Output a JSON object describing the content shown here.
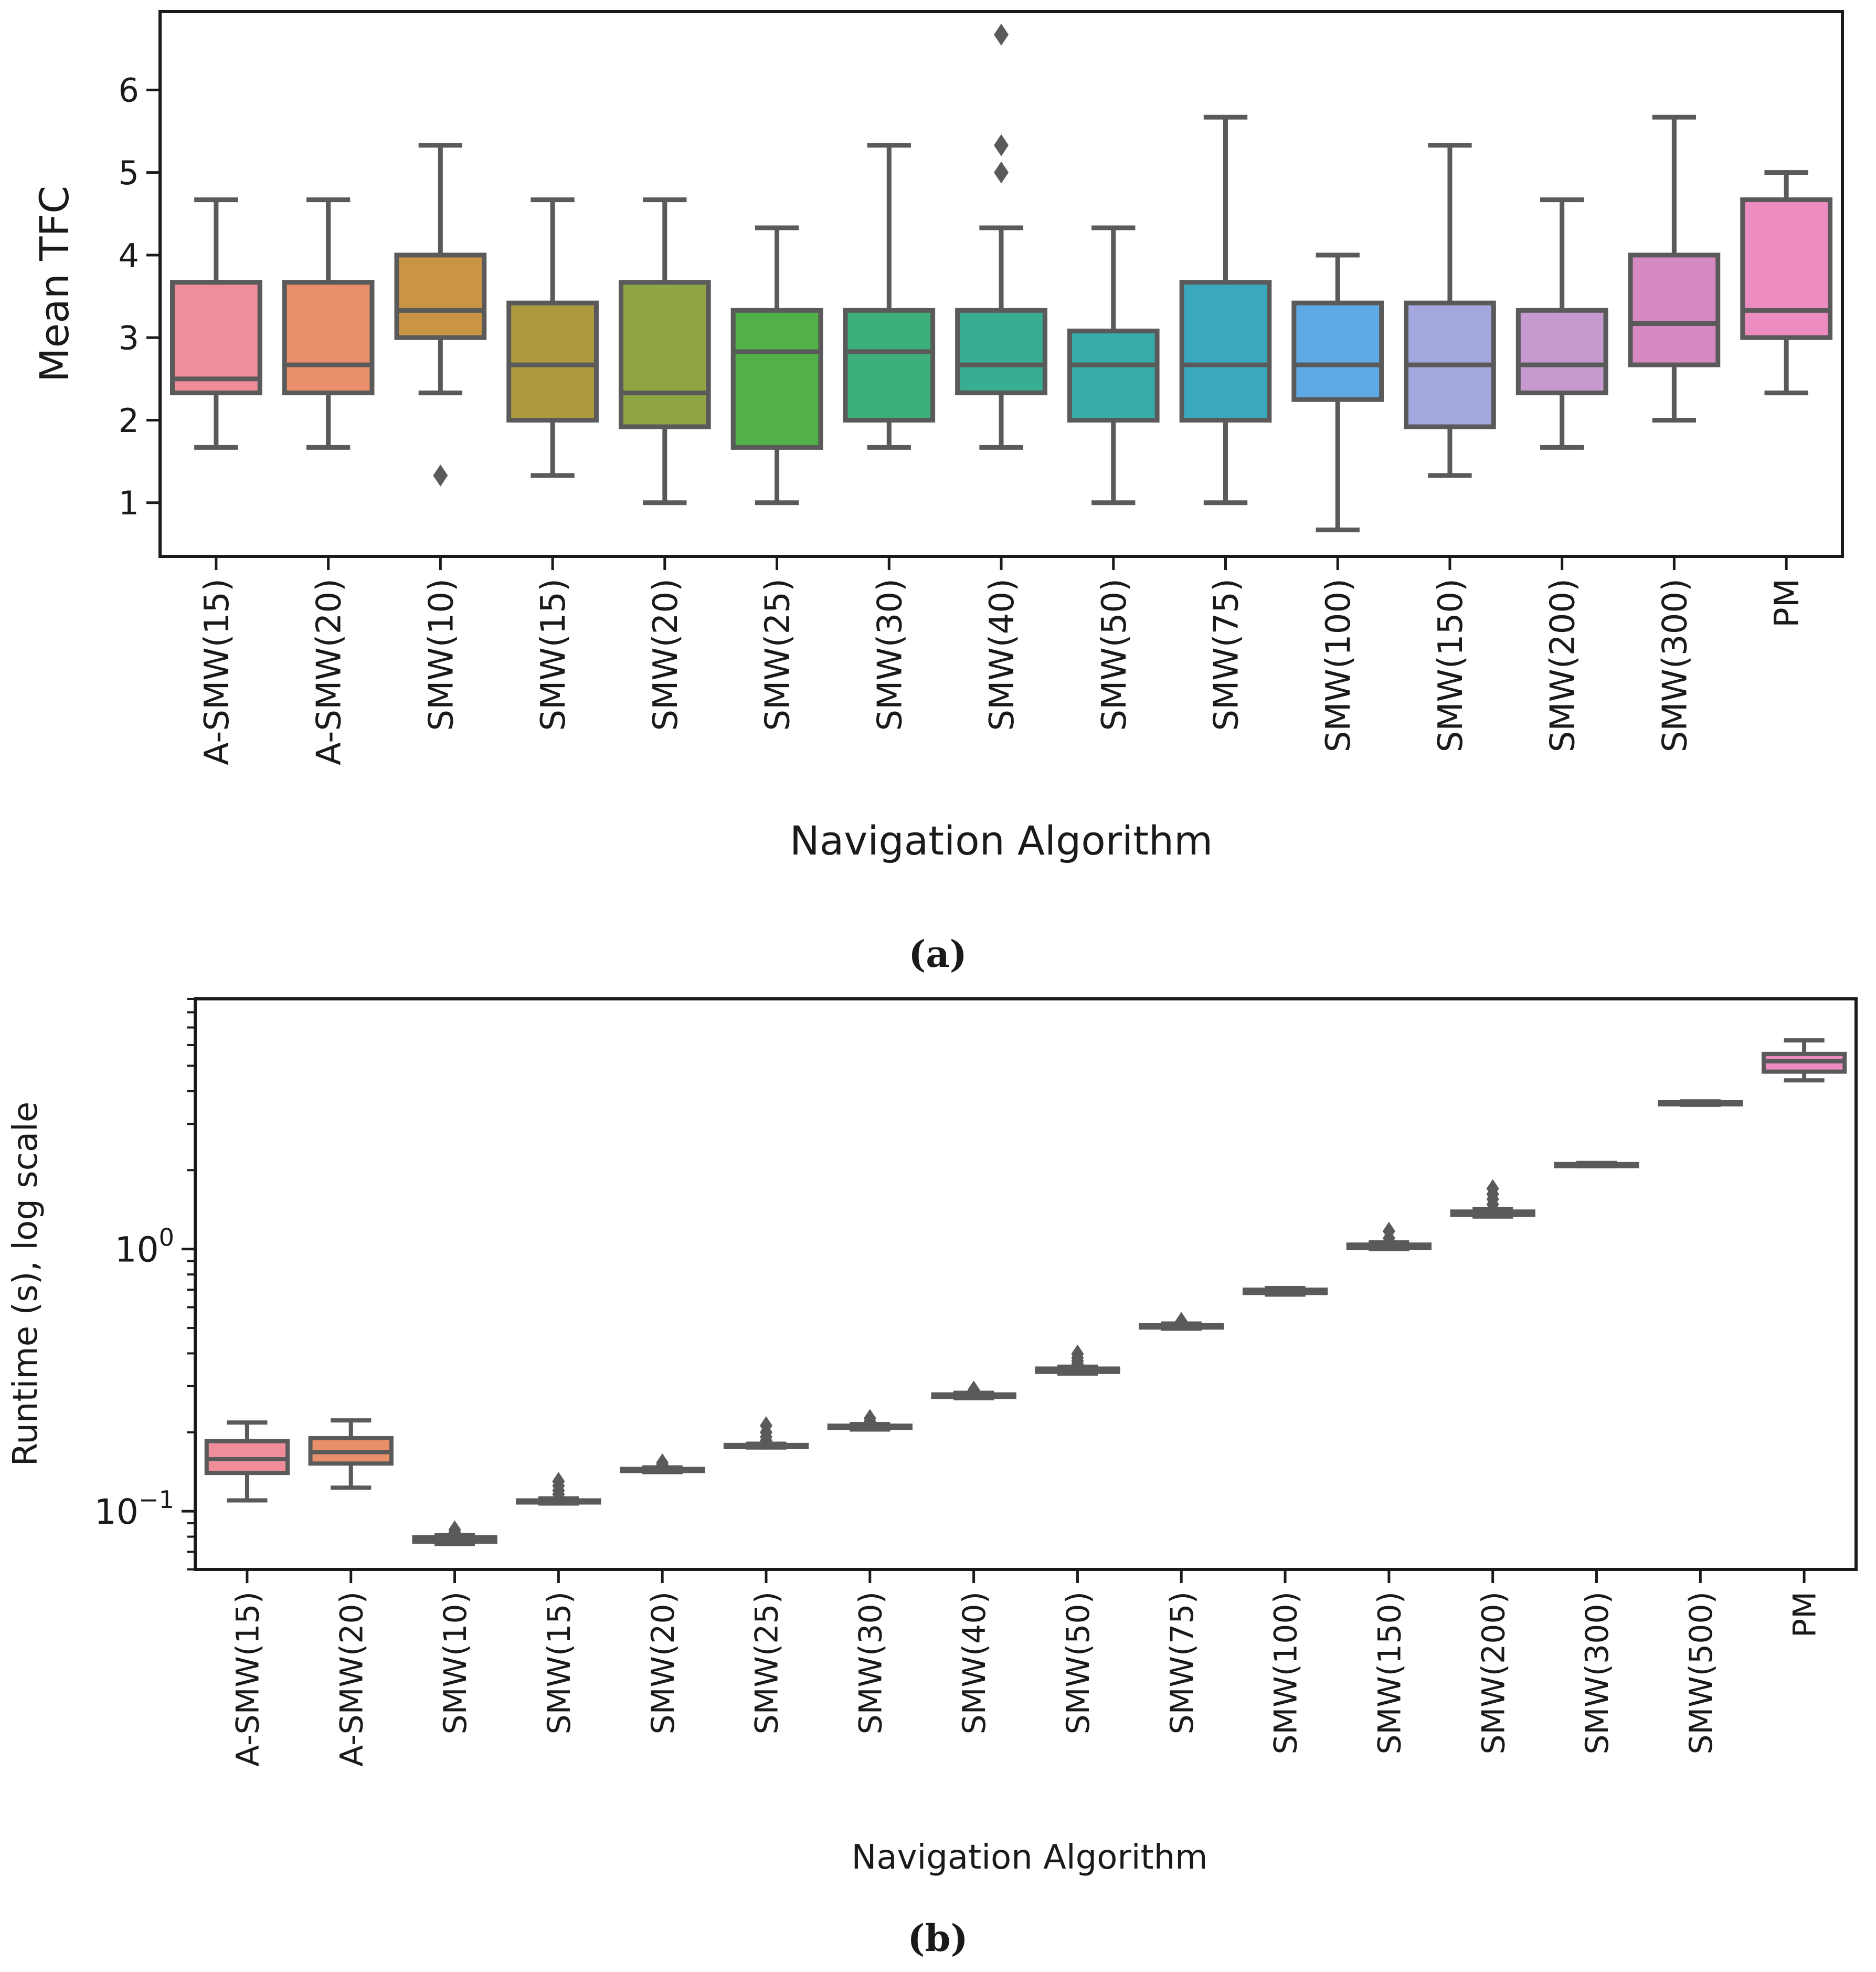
{
  "captions": {
    "a": "(a)",
    "b": "(b)"
  },
  "chart_data": [
    {
      "type": "box",
      "id": "a",
      "xlabel": "Navigation Algorithm",
      "ylabel": "Mean TFC",
      "ylim": [
        0.35,
        6.95
      ],
      "yticks": [
        1,
        2,
        3,
        4,
        5,
        6
      ],
      "ytick_labels": [
        "1",
        "2",
        "3",
        "4",
        "5",
        "6"
      ],
      "grid": false,
      "categories": [
        "A-SMW(15)",
        "A-SMW(20)",
        "SMW(10)",
        "SMW(15)",
        "SMW(20)",
        "SMW(25)",
        "SMW(30)",
        "SMW(40)",
        "SMW(50)",
        "SMW(75)",
        "SMW(100)",
        "SMW(150)",
        "SMW(200)",
        "SMW(300)",
        "PM"
      ],
      "colors": [
        "#F08D9A",
        "#E9906A",
        "#C99444",
        "#AD9A3F",
        "#8FA543",
        "#52B048",
        "#3DAF7A",
        "#38AD91",
        "#36ADA6",
        "#3AA9C0",
        "#5EAAE6",
        "#A3A7DE",
        "#C69ACE",
        "#D789C1",
        "#EC8CC0"
      ],
      "boxes": [
        {
          "whislo": 1.67,
          "q1": 2.33,
          "med": 2.5,
          "q3": 3.67,
          "whishi": 4.67,
          "fliers": []
        },
        {
          "whislo": 1.67,
          "q1": 2.33,
          "med": 2.67,
          "q3": 3.67,
          "whishi": 4.67,
          "fliers": []
        },
        {
          "whislo": 2.33,
          "q1": 3.0,
          "med": 3.33,
          "q3": 4.0,
          "whishi": 5.33,
          "fliers": [
            1.33
          ]
        },
        {
          "whislo": 1.33,
          "q1": 2.0,
          "med": 2.67,
          "q3": 3.42,
          "whishi": 4.67,
          "fliers": []
        },
        {
          "whislo": 1.0,
          "q1": 1.92,
          "med": 2.33,
          "q3": 3.67,
          "whishi": 4.67,
          "fliers": []
        },
        {
          "whislo": 1.0,
          "q1": 1.67,
          "med": 2.83,
          "q3": 3.33,
          "whishi": 4.33,
          "fliers": []
        },
        {
          "whislo": 1.67,
          "q1": 2.0,
          "med": 2.83,
          "q3": 3.33,
          "whishi": 5.33,
          "fliers": []
        },
        {
          "whislo": 1.67,
          "q1": 2.33,
          "med": 2.67,
          "q3": 3.33,
          "whishi": 4.33,
          "fliers": [
            5.0,
            5.33,
            6.67
          ]
        },
        {
          "whislo": 1.0,
          "q1": 2.0,
          "med": 2.67,
          "q3": 3.08,
          "whishi": 4.33,
          "fliers": []
        },
        {
          "whislo": 1.0,
          "q1": 2.0,
          "med": 2.67,
          "q3": 3.67,
          "whishi": 5.67,
          "fliers": []
        },
        {
          "whislo": 0.67,
          "q1": 2.25,
          "med": 2.67,
          "q3": 3.42,
          "whishi": 4.0,
          "fliers": []
        },
        {
          "whislo": 1.33,
          "q1": 1.92,
          "med": 2.67,
          "q3": 3.42,
          "whishi": 5.33,
          "fliers": []
        },
        {
          "whislo": 1.67,
          "q1": 2.33,
          "med": 2.67,
          "q3": 3.33,
          "whishi": 4.67,
          "fliers": []
        },
        {
          "whislo": 2.0,
          "q1": 2.67,
          "med": 3.17,
          "q3": 4.0,
          "whishi": 5.67,
          "fliers": []
        },
        {
          "whislo": 2.33,
          "q1": 3.0,
          "med": 3.33,
          "q3": 4.67,
          "whishi": 5.0,
          "fliers": []
        }
      ]
    },
    {
      "type": "box",
      "id": "b",
      "xlabel": "Navigation Algorithm",
      "ylabel": "Runtime (s), log scale",
      "yscale": "log",
      "ylim": [
        0.06,
        9.0
      ],
      "ytick_labels": [
        {
          "value": 0.1,
          "base": "10",
          "exp": "−1"
        },
        {
          "value": 1,
          "base": "10",
          "exp": "0"
        }
      ],
      "grid": false,
      "categories": [
        "A-SMW(15)",
        "A-SMW(20)",
        "SMW(10)",
        "SMW(15)",
        "SMW(20)",
        "SMW(25)",
        "SMW(30)",
        "SMW(40)",
        "SMW(50)",
        "SMW(75)",
        "SMW(100)",
        "SMW(150)",
        "SMW(200)",
        "SMW(300)",
        "SMW(500)",
        "PM"
      ],
      "colors": [
        "#F08D9A",
        "#E9906A",
        "#C99444",
        "#AD9A3F",
        "#8FA543",
        "#52B048",
        "#3DAF7A",
        "#38AD91",
        "#36ADA6",
        "#3AA9C0",
        "#5EAAE6",
        "#A3A7DE",
        "#C69ACE",
        "#D789C1",
        "#E28BC4",
        "#EC8CC0"
      ],
      "boxes": [
        {
          "whislo": 0.11,
          "q1": 0.14,
          "med": 0.158,
          "q3": 0.185,
          "whishi": 0.218,
          "fliers": []
        },
        {
          "whislo": 0.123,
          "q1": 0.152,
          "med": 0.168,
          "q3": 0.19,
          "whishi": 0.222,
          "fliers": []
        },
        {
          "whislo": 0.075,
          "q1": 0.0765,
          "med": 0.078,
          "q3": 0.0795,
          "whishi": 0.081,
          "fliers": [
            0.083,
            0.085
          ]
        },
        {
          "whislo": 0.107,
          "q1": 0.108,
          "med": 0.109,
          "q3": 0.11,
          "whishi": 0.112,
          "fliers": [
            0.116,
            0.12,
            0.125,
            0.13
          ]
        },
        {
          "whislo": 0.141,
          "q1": 0.143,
          "med": 0.144,
          "q3": 0.145,
          "whishi": 0.147,
          "fliers": [
            0.15,
            0.153
          ]
        },
        {
          "whislo": 0.175,
          "q1": 0.176,
          "med": 0.178,
          "q3": 0.179,
          "whishi": 0.181,
          "fliers": [
            0.186,
            0.192,
            0.2,
            0.212
          ]
        },
        {
          "whislo": 0.205,
          "q1": 0.208,
          "med": 0.21,
          "q3": 0.212,
          "whishi": 0.215,
          "fliers": [
            0.22,
            0.226
          ]
        },
        {
          "whislo": 0.27,
          "q1": 0.273,
          "med": 0.276,
          "q3": 0.279,
          "whishi": 0.283,
          "fliers": [
            0.29
          ]
        },
        {
          "whislo": 0.335,
          "q1": 0.34,
          "med": 0.345,
          "q3": 0.35,
          "whishi": 0.356,
          "fliers": [
            0.365,
            0.375,
            0.385,
            0.398
          ]
        },
        {
          "whislo": 0.497,
          "q1": 0.502,
          "med": 0.507,
          "q3": 0.512,
          "whishi": 0.52,
          "fliers": [
            0.53
          ]
        },
        {
          "whislo": 0.67,
          "q1": 0.68,
          "med": 0.69,
          "q3": 0.7,
          "whishi": 0.71,
          "fliers": []
        },
        {
          "whislo": 1.0,
          "q1": 1.01,
          "med": 1.02,
          "q3": 1.04,
          "whishi": 1.06,
          "fliers": [
            1.1,
            1.17
          ]
        },
        {
          "whislo": 1.33,
          "q1": 1.35,
          "med": 1.37,
          "q3": 1.39,
          "whishi": 1.42,
          "fliers": [
            1.48,
            1.55,
            1.62,
            1.7
          ]
        },
        {
          "whislo": 2.07,
          "q1": 2.08,
          "med": 2.1,
          "q3": 2.11,
          "whishi": 2.13,
          "fliers": []
        },
        {
          "whislo": 3.55,
          "q1": 3.57,
          "med": 3.6,
          "q3": 3.63,
          "whishi": 3.66,
          "fliers": []
        },
        {
          "whislo": 4.4,
          "q1": 4.75,
          "med": 5.2,
          "q3": 5.55,
          "whishi": 6.25,
          "fliers": []
        }
      ]
    }
  ]
}
